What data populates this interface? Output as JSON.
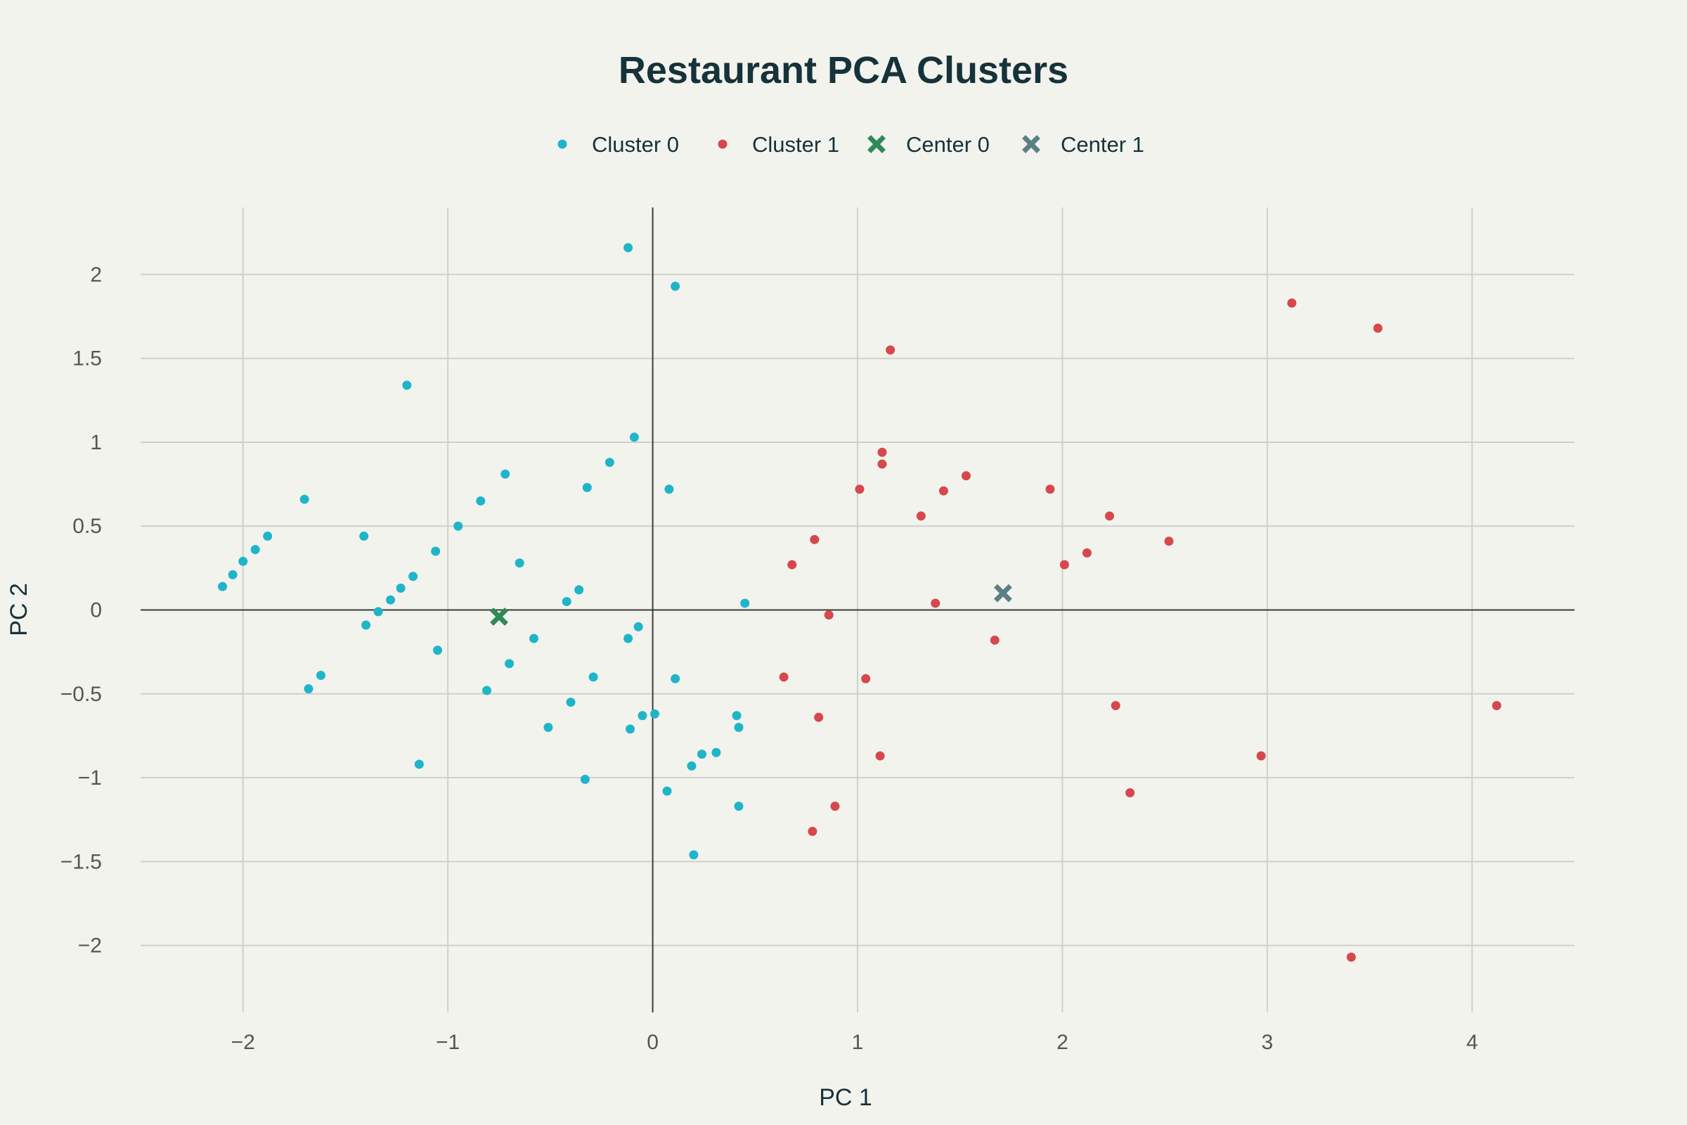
{
  "chart_data": {
    "type": "scatter",
    "title": "Restaurant PCA Clusters",
    "xlabel": "PC 1",
    "ylabel": "PC 2",
    "xlim": [
      -2.5,
      4.5
    ],
    "ylim": [
      -2.4,
      2.4
    ],
    "xticks": [
      -2,
      -1,
      0,
      1,
      2,
      3,
      4
    ],
    "xtick_labels": [
      "−2",
      "−1",
      "0",
      "1",
      "2",
      "3",
      "4"
    ],
    "yticks": [
      2,
      1.5,
      1,
      0.5,
      0,
      -0.5,
      -1,
      -1.5,
      -2
    ],
    "ytick_labels": [
      "2",
      "1.5",
      "1",
      "0.5",
      "0",
      "−0.5",
      "−1",
      "−1.5",
      "−2"
    ],
    "grid": true,
    "legend_position": "top-center",
    "series": [
      {
        "name": "Cluster 0",
        "color": "#1fb5c9",
        "marker": "circle",
        "points": [
          [
            -0.12,
            2.16
          ],
          [
            0.11,
            1.93
          ],
          [
            -1.2,
            1.34
          ],
          [
            -0.09,
            1.03
          ],
          [
            -0.21,
            0.88
          ],
          [
            -0.72,
            0.81
          ],
          [
            -0.32,
            0.73
          ],
          [
            0.08,
            0.72
          ],
          [
            -1.7,
            0.66
          ],
          [
            -0.84,
            0.65
          ],
          [
            -0.95,
            0.5
          ],
          [
            -1.41,
            0.44
          ],
          [
            -1.88,
            0.44
          ],
          [
            -1.94,
            0.36
          ],
          [
            -1.06,
            0.35
          ],
          [
            -2.0,
            0.29
          ],
          [
            -0.65,
            0.28
          ],
          [
            -2.05,
            0.21
          ],
          [
            -1.17,
            0.2
          ],
          [
            -2.1,
            0.14
          ],
          [
            -1.23,
            0.13
          ],
          [
            -0.36,
            0.12
          ],
          [
            -1.28,
            0.06
          ],
          [
            -0.42,
            0.05
          ],
          [
            0.45,
            0.04
          ],
          [
            -1.34,
            -0.01
          ],
          [
            -1.4,
            -0.09
          ],
          [
            -0.07,
            -0.1
          ],
          [
            -0.58,
            -0.17
          ],
          [
            -0.12,
            -0.17
          ],
          [
            -1.05,
            -0.24
          ],
          [
            -0.7,
            -0.32
          ],
          [
            -1.62,
            -0.39
          ],
          [
            -0.29,
            -0.4
          ],
          [
            0.11,
            -0.41
          ],
          [
            -1.68,
            -0.47
          ],
          [
            -0.81,
            -0.48
          ],
          [
            -0.4,
            -0.55
          ],
          [
            0.01,
            -0.62
          ],
          [
            -0.05,
            -0.63
          ],
          [
            0.41,
            -0.63
          ],
          [
            -0.51,
            -0.7
          ],
          [
            -0.11,
            -0.71
          ],
          [
            0.42,
            -0.7
          ],
          [
            0.31,
            -0.85
          ],
          [
            0.24,
            -0.86
          ],
          [
            -1.14,
            -0.92
          ],
          [
            0.19,
            -0.93
          ],
          [
            -0.33,
            -1.01
          ],
          [
            0.07,
            -1.08
          ],
          [
            0.42,
            -1.17
          ],
          [
            0.2,
            -1.46
          ]
        ]
      },
      {
        "name": "Cluster 1",
        "color": "#d6484b",
        "marker": "circle",
        "points": [
          [
            3.12,
            1.83
          ],
          [
            3.54,
            1.68
          ],
          [
            1.16,
            1.55
          ],
          [
            1.12,
            0.94
          ],
          [
            1.12,
            0.87
          ],
          [
            1.53,
            0.8
          ],
          [
            1.01,
            0.72
          ],
          [
            1.42,
            0.71
          ],
          [
            1.94,
            0.72
          ],
          [
            1.31,
            0.56
          ],
          [
            2.23,
            0.56
          ],
          [
            0.79,
            0.42
          ],
          [
            2.52,
            0.41
          ],
          [
            2.12,
            0.34
          ],
          [
            0.68,
            0.27
          ],
          [
            2.01,
            0.27
          ],
          [
            1.38,
            0.04
          ],
          [
            0.86,
            -0.03
          ],
          [
            1.67,
            -0.18
          ],
          [
            0.64,
            -0.4
          ],
          [
            1.04,
            -0.41
          ],
          [
            2.26,
            -0.57
          ],
          [
            4.12,
            -0.57
          ],
          [
            0.81,
            -0.64
          ],
          [
            1.11,
            -0.87
          ],
          [
            2.97,
            -0.87
          ],
          [
            2.33,
            -1.09
          ],
          [
            0.89,
            -1.17
          ],
          [
            0.78,
            -1.32
          ],
          [
            3.41,
            -2.07
          ]
        ]
      },
      {
        "name": "Center 0",
        "color": "#2e8b57",
        "marker": "x",
        "points": [
          [
            -0.75,
            -0.04
          ]
        ]
      },
      {
        "name": "Center 1",
        "color": "#5b7f86",
        "marker": "x",
        "points": [
          [
            1.71,
            0.1
          ]
        ]
      }
    ]
  }
}
